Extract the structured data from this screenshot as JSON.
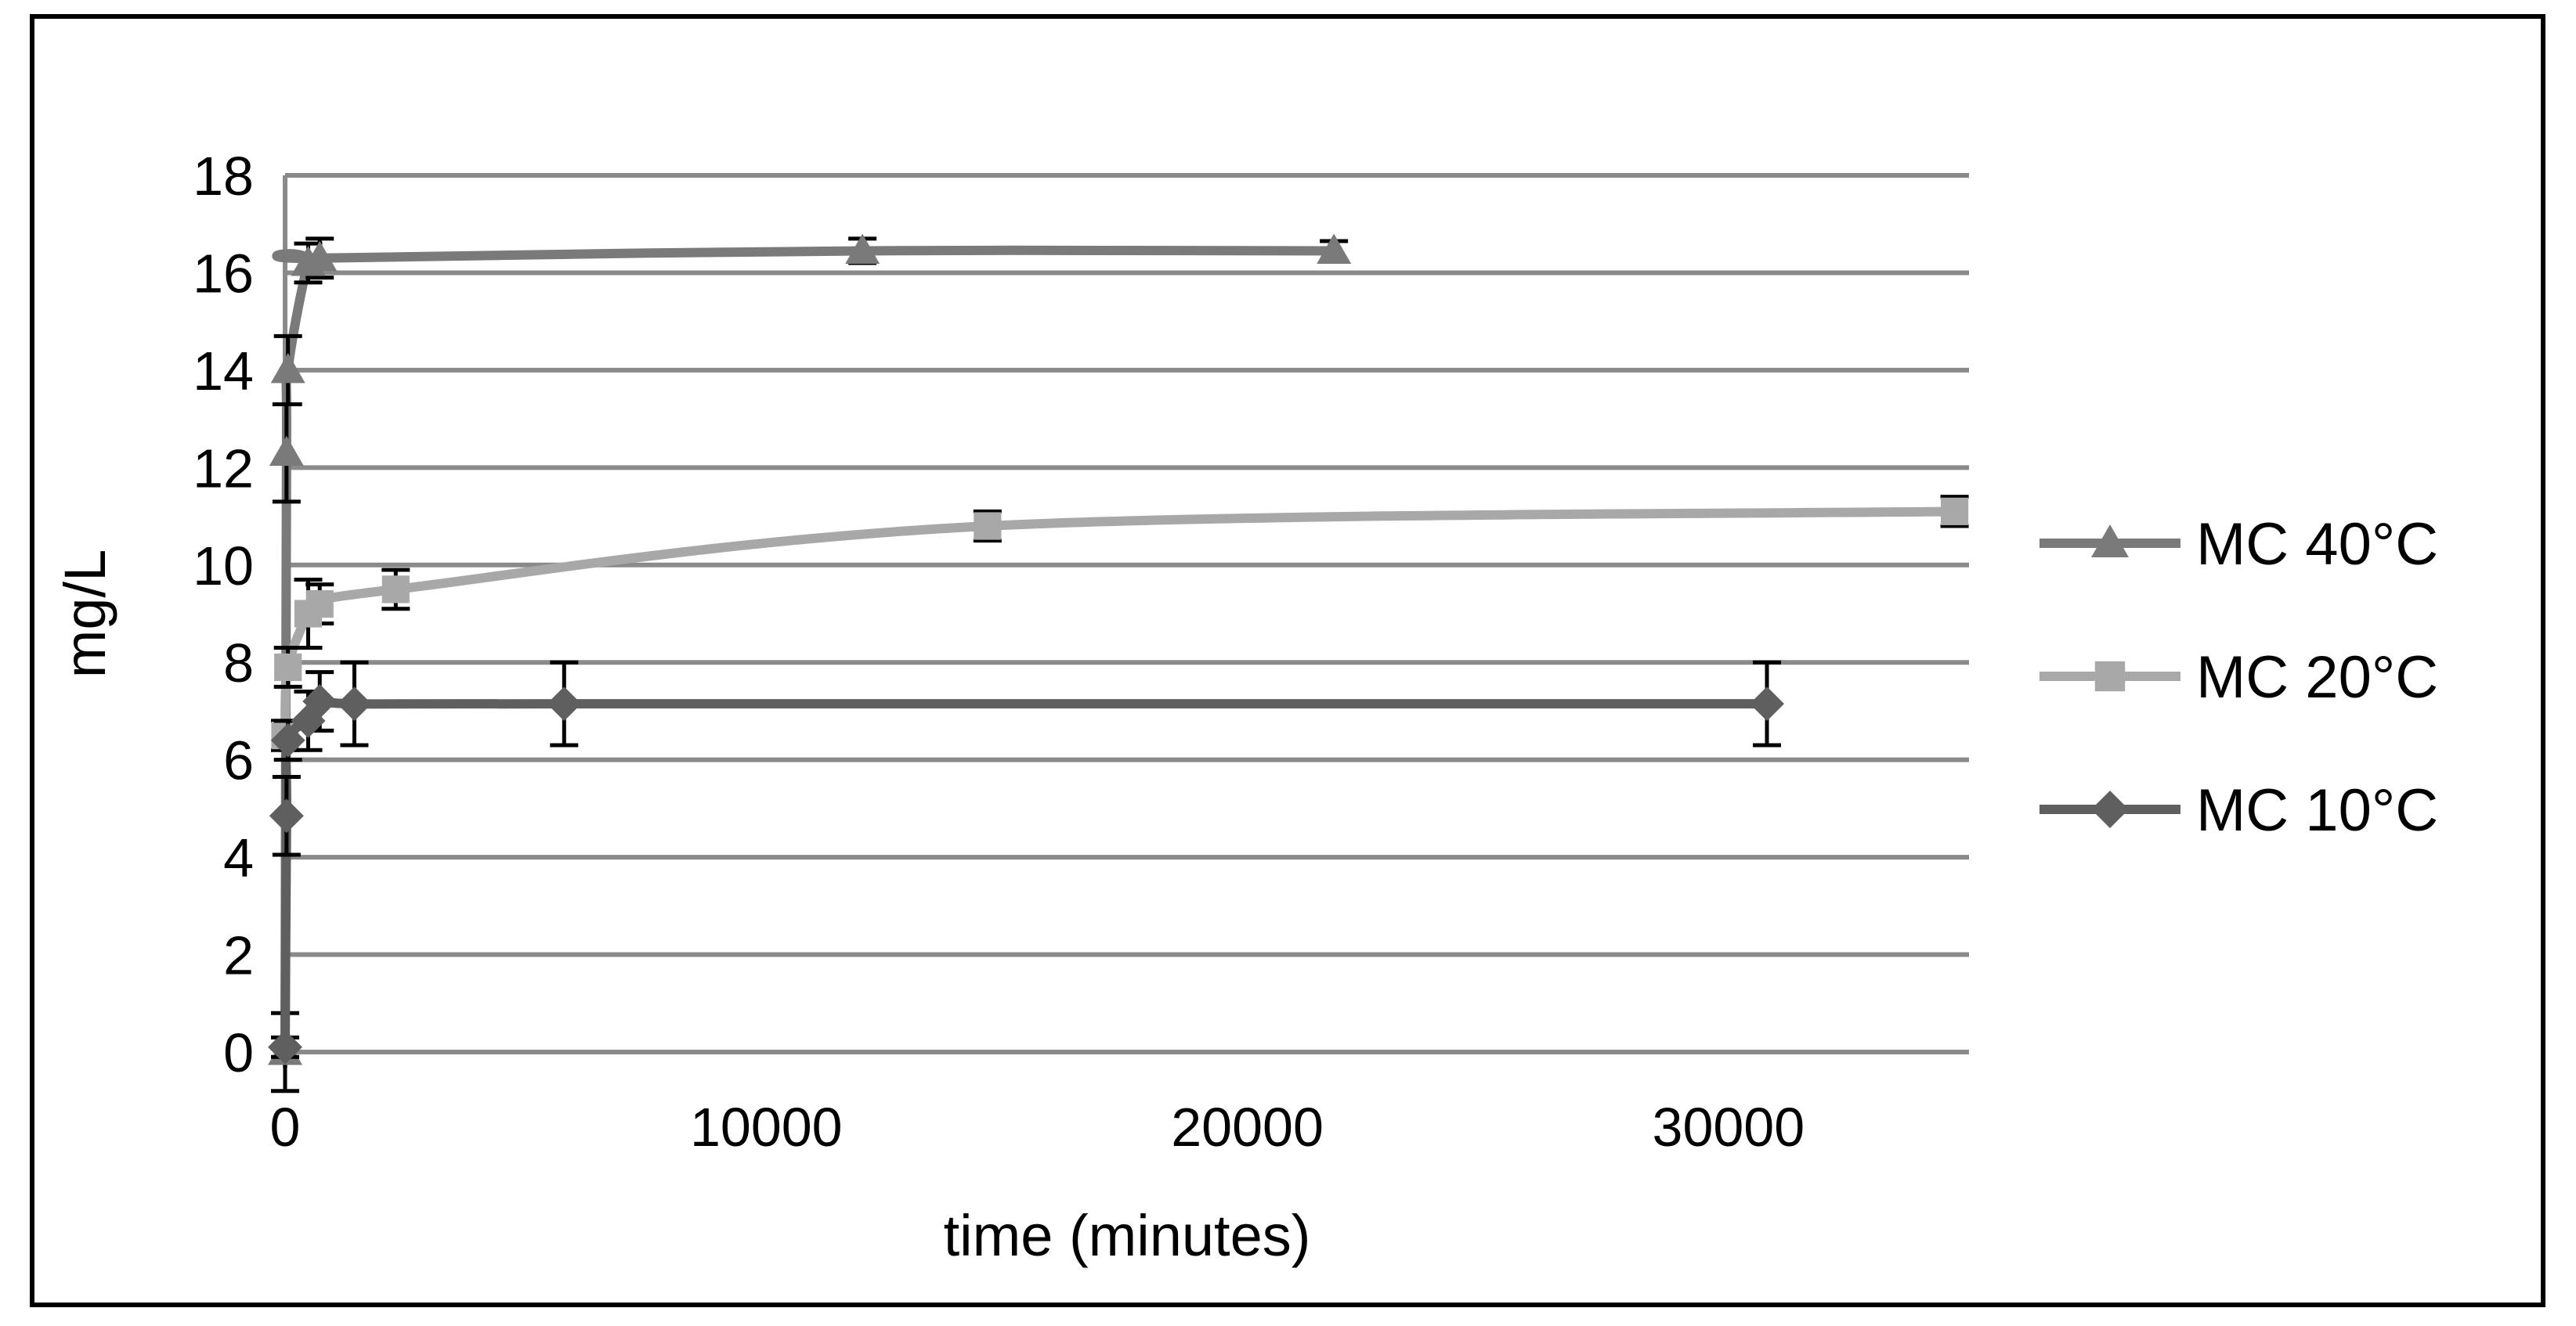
{
  "chart_data": {
    "type": "line",
    "title": "",
    "xlabel": "time (minutes)",
    "ylabel": "mg/L",
    "xlim": [
      0,
      35000
    ],
    "ylim": [
      0,
      18
    ],
    "x_ticks": [
      0,
      10000,
      20000,
      30000
    ],
    "y_ticks": [
      0,
      2,
      4,
      6,
      8,
      10,
      12,
      14,
      16,
      18
    ],
    "grid": "horizontal",
    "legend_position": "right",
    "series": [
      {
        "name": "MC 40°C",
        "color": "#7a7a7a",
        "marker": "triangle",
        "points": [
          {
            "x": 0,
            "y": 0,
            "err": 0.8
          },
          {
            "x": 30,
            "y": 12.3,
            "err": 1.0
          },
          {
            "x": 60,
            "y": 14.0,
            "err": 0.7
          },
          {
            "x": 480,
            "y": 16.2,
            "err": 0.4
          },
          {
            "x": 720,
            "y": 16.3,
            "err": 0.4
          },
          {
            "x": 12000,
            "y": 16.45,
            "err": 0.25
          },
          {
            "x": 21800,
            "y": 16.45,
            "err": 0.2
          }
        ]
      },
      {
        "name": "MC 20°C",
        "color": "#a8a8a8",
        "marker": "square",
        "points": [
          {
            "x": 0,
            "y": 6.5,
            "err": 0.3
          },
          {
            "x": 60,
            "y": 7.9,
            "err": 0.4
          },
          {
            "x": 480,
            "y": 9.0,
            "err": 0.7
          },
          {
            "x": 720,
            "y": 9.2,
            "err": 0.4
          },
          {
            "x": 2300,
            "y": 9.5,
            "err": 0.4
          },
          {
            "x": 14600,
            "y": 10.8,
            "err": 0.3
          },
          {
            "x": 34700,
            "y": 11.1,
            "err": 0.3
          }
        ]
      },
      {
        "name": "MC 10°C",
        "color": "#5f5f5f",
        "marker": "diamond",
        "points": [
          {
            "x": 0,
            "y": 0.1,
            "err": 0.2
          },
          {
            "x": 30,
            "y": 4.85,
            "err": 0.8
          },
          {
            "x": 60,
            "y": 6.4,
            "err": 0.4
          },
          {
            "x": 480,
            "y": 6.8,
            "err": 0.6
          },
          {
            "x": 720,
            "y": 7.2,
            "err": 0.6
          },
          {
            "x": 1440,
            "y": 7.15,
            "err": 0.85
          },
          {
            "x": 5800,
            "y": 7.15,
            "err": 0.85
          },
          {
            "x": 30800,
            "y": 7.15,
            "err": 0.85
          }
        ]
      }
    ]
  }
}
